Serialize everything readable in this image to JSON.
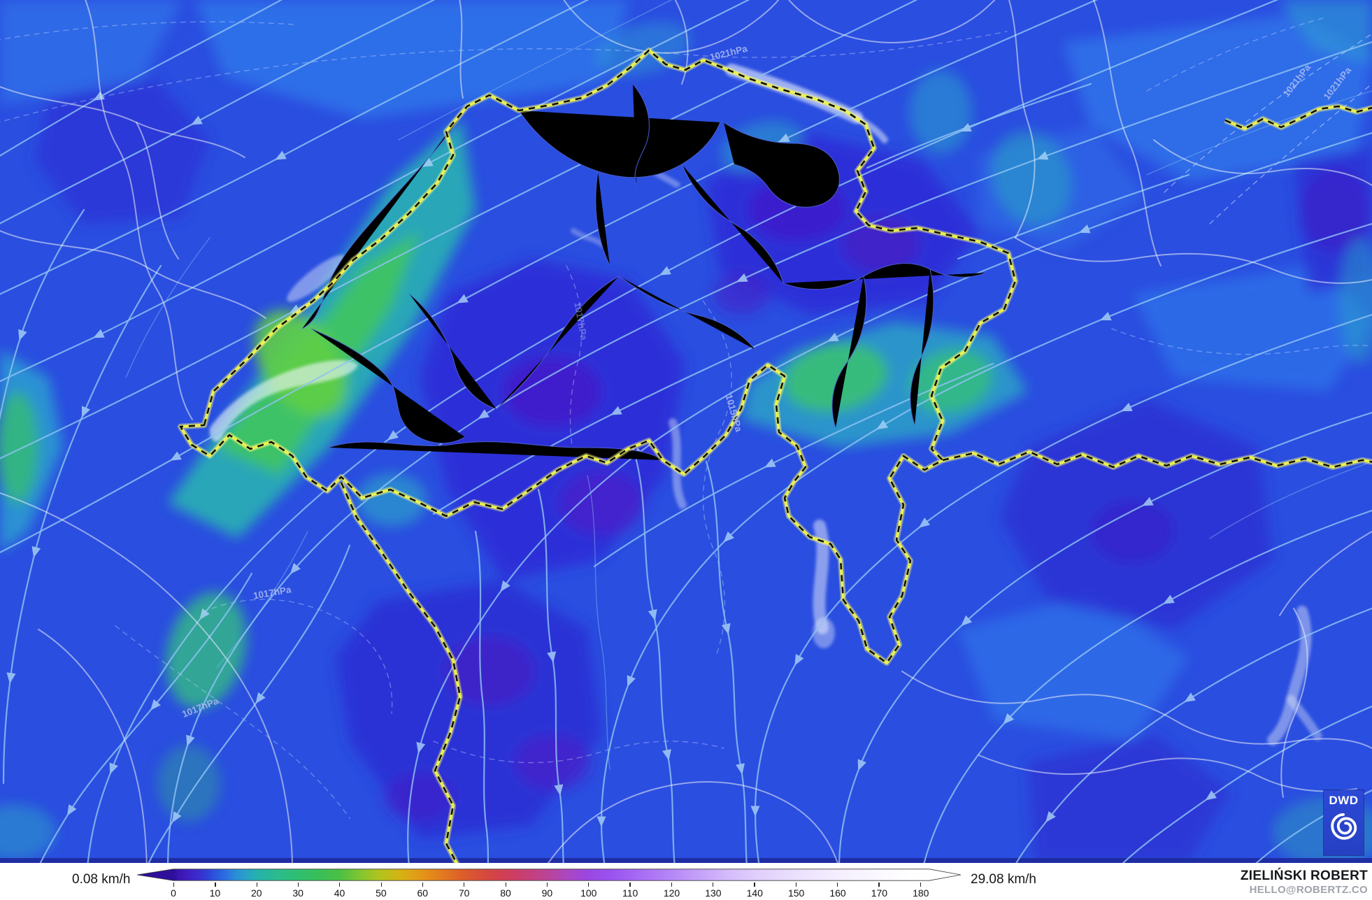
{
  "legend": {
    "min_label": "0.08 km/h",
    "max_label": "29.08 km/h",
    "unit": "km/h",
    "ticks": [
      "0",
      "10",
      "20",
      "30",
      "40",
      "50",
      "60",
      "70",
      "80",
      "90",
      "100",
      "110",
      "120",
      "130",
      "140",
      "150",
      "160",
      "170",
      "180"
    ],
    "colorbar_stops": [
      [
        0,
        "#2e0f9b"
      ],
      [
        1,
        "#3a14ae"
      ],
      [
        3,
        "#3f1cc0"
      ],
      [
        6,
        "#3a2ecf"
      ],
      [
        8,
        "#3040d6"
      ],
      [
        10,
        "#2a57de"
      ],
      [
        13,
        "#2b76e2"
      ],
      [
        15,
        "#2a90d5"
      ],
      [
        18,
        "#27a5c3"
      ],
      [
        20,
        "#25b2ac"
      ],
      [
        25,
        "#2abc8d"
      ],
      [
        30,
        "#2fbf70"
      ],
      [
        35,
        "#39bf57"
      ],
      [
        40,
        "#4cc044"
      ],
      [
        45,
        "#83c62f"
      ],
      [
        50,
        "#b5c31d"
      ],
      [
        55,
        "#d8b013"
      ],
      [
        60,
        "#e49518"
      ],
      [
        65,
        "#e2781f"
      ],
      [
        70,
        "#dc5c2b"
      ],
      [
        75,
        "#d6493d"
      ],
      [
        80,
        "#d03d56"
      ],
      [
        85,
        "#c73f76"
      ],
      [
        90,
        "#bb4497"
      ],
      [
        95,
        "#aa47c2"
      ],
      [
        100,
        "#9b46e3"
      ],
      [
        105,
        "#9a52ef"
      ],
      [
        110,
        "#a263f3"
      ],
      [
        115,
        "#ac75f5"
      ],
      [
        120,
        "#b687f7"
      ],
      [
        125,
        "#c19bf8"
      ],
      [
        130,
        "#ccadfa"
      ],
      [
        135,
        "#d7c0fb"
      ],
      [
        140,
        "#e0cdfc"
      ],
      [
        150,
        "#ebe0fd"
      ],
      [
        160,
        "#f4eefe"
      ],
      [
        170,
        "#fbf8ff"
      ],
      [
        180,
        "#ffffff"
      ]
    ]
  },
  "map": {
    "isobar_labels": [
      "1021hPa",
      "1021hPa",
      "1021hPa",
      "1017hPa",
      "1017hPa",
      "1015hPa",
      "1017hPa"
    ],
    "palette": {
      "base_blue": "#2a4ee0",
      "light_blue": "#2f74ea",
      "dark_blue": "#2d2fd6",
      "calm_indigo": "#4319c8",
      "wind_teal": "#27b0b4",
      "wind_green": "#3ec464",
      "wind_bright_green": "#5fce46",
      "streamline": "#8fc2f3",
      "national_border_yellow": "#ecf24e",
      "national_border_black": "#0d0d0d",
      "regional_border_white": "#f4f7fd",
      "isobar_label": "#aebdf2",
      "lake_white": "#eef2fb"
    }
  },
  "branding": {
    "logo_text": "DWD",
    "author": "ZIELIŃSKI ROBERT",
    "contact": "HELLO@ROBERTZ.CO"
  }
}
